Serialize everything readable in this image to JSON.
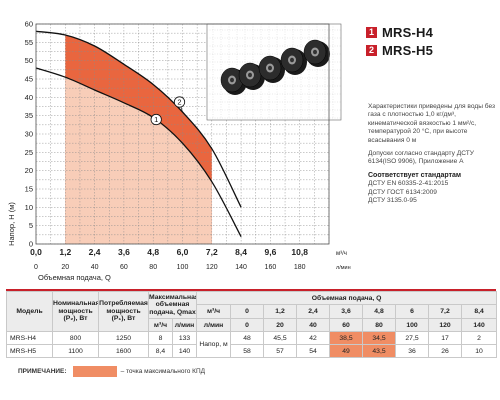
{
  "chart_data": {
    "type": "area",
    "ylabel": "Напор, H (м)",
    "xlabel": "Объемная подача, Q",
    "x_unit_primary": "м³/ч",
    "x_unit_secondary": "л/мин",
    "x_ticks_primary": [
      "0,0",
      "1,2",
      "2,4",
      "3,6",
      "4,8",
      "6,0",
      "7,2",
      "8,4",
      "9,6",
      "10,8"
    ],
    "x_ticks_secondary": [
      "0",
      "20",
      "40",
      "60",
      "80",
      "100",
      "120",
      "140",
      "160",
      "180"
    ],
    "xlim": [
      0,
      12
    ],
    "ylim": [
      0,
      60
    ],
    "grid": true,
    "series": [
      {
        "name": "1",
        "x": [
          0,
          1.2,
          2.4,
          3.6,
          4.8,
          6.0,
          7.2,
          8.4
        ],
        "y": [
          48,
          45.5,
          42,
          38.5,
          34.5,
          27.5,
          17,
          2
        ]
      },
      {
        "name": "2",
        "x": [
          0,
          1.2,
          2.4,
          3.6,
          4.8,
          6.0,
          7.2,
          8.4
        ],
        "y": [
          58,
          57,
          54,
          49,
          43.5,
          36,
          26,
          10
        ]
      }
    ],
    "band_x": [
      1.2,
      7.2
    ]
  },
  "legend": [
    {
      "num": "1",
      "name": "MRS-H4"
    },
    {
      "num": "2",
      "name": "MRS-H5"
    }
  ],
  "notes": {
    "p1": "Характеристики приведены для воды без газа с плотностью 1,0 кг/дм³, кинематической вязкостью 1 мм²/с, температурой 20 °С, при высоте всасывания 0 м",
    "p2": "Допуски согласно стандарту ДСТУ 6134(ISO 9906), Приложение А",
    "p3_head": "Соответствует стандартам",
    "p3_lines": [
      "ДСТУ EN 60335-2-41:2015",
      "ДСТУ ГОСТ 6134:2009",
      "ДСТУ 3135.0-95"
    ]
  },
  "table": {
    "headers": {
      "model": "Модель",
      "power_nom": "Номинальная мощность (P₂), Вт",
      "power_cons": "Потребляемая мощность (P₁), Вт",
      "qmax": "Максимальная объемная подача, Qmax",
      "flow": "Объемная подача, Q",
      "unit_m3": "м³/ч",
      "unit_lmin": "л/мин"
    },
    "flow_m3": [
      "0",
      "1,2",
      "2,4",
      "3,6",
      "4,8",
      "6",
      "7,2",
      "8,4"
    ],
    "flow_lmin": [
      "0",
      "20",
      "40",
      "60",
      "80",
      "100",
      "120",
      "140"
    ],
    "head_label": "Напор, м",
    "rows": [
      {
        "model": "MRS-H4",
        "p2": "800",
        "p1": "1250",
        "q_m3": "8",
        "q_lmin": "133",
        "values": [
          "48",
          "45,5",
          "42",
          "38,5",
          "34,5",
          "27,5",
          "17",
          "2"
        ]
      },
      {
        "model": "MRS-H5",
        "p2": "1100",
        "p1": "1600",
        "q_m3": "8,4",
        "q_lmin": "140",
        "values": [
          "58",
          "57",
          "54",
          "49",
          "43,5",
          "36",
          "26",
          "10"
        ]
      }
    ]
  },
  "note": {
    "label": "ПРИМЕЧАНИЕ:",
    "text": "– точка максимального КПД"
  },
  "colors": {
    "accent": "#c8202a",
    "band_dark": "#e9663f",
    "band_light": "#f8cdb8",
    "highlight": "#f08d64"
  }
}
